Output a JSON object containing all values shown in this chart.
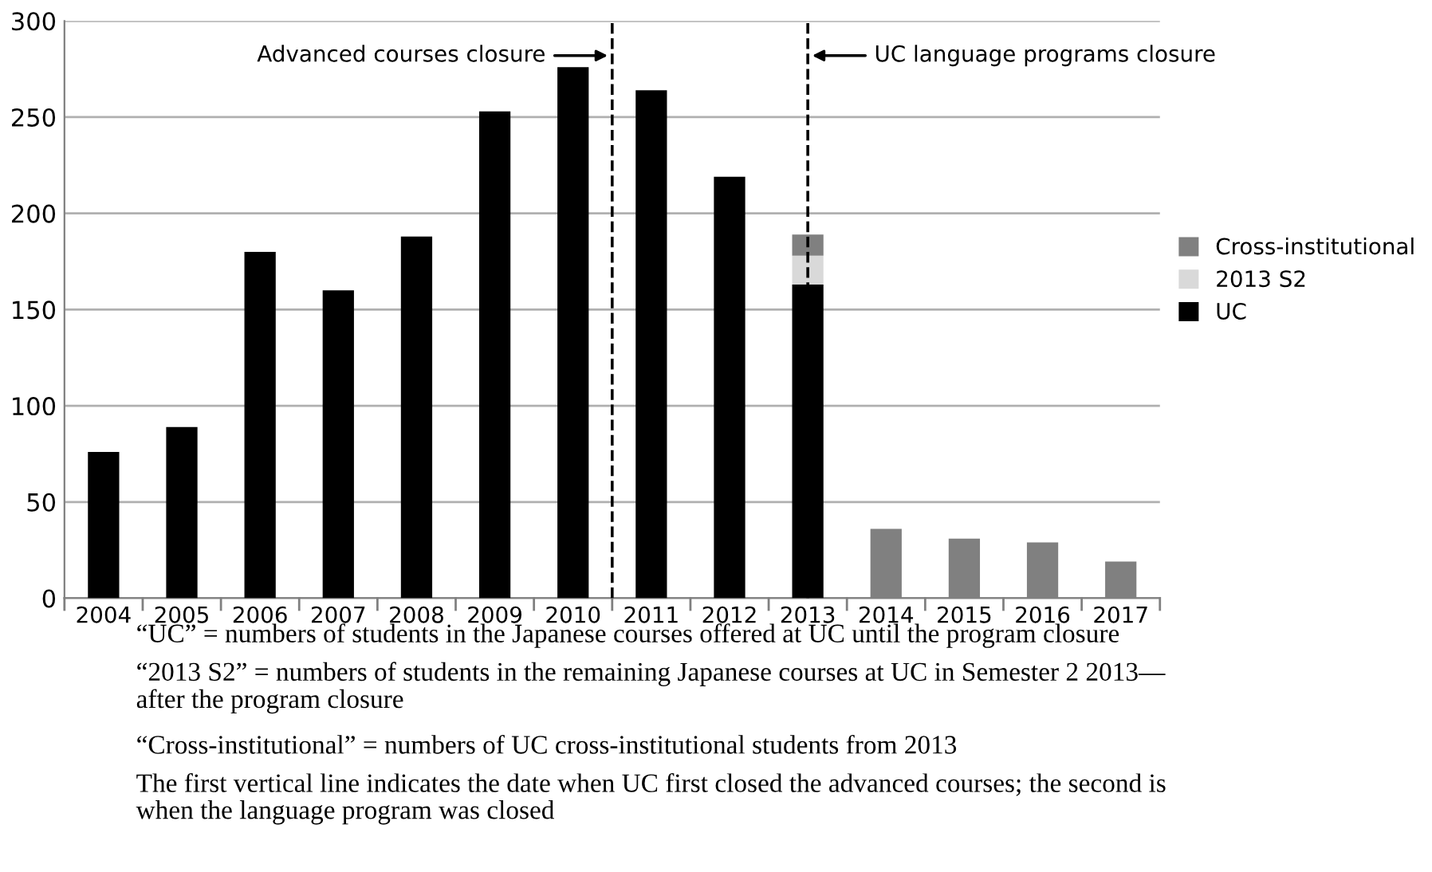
{
  "chart_data": {
    "type": "bar",
    "stacked": true,
    "x": [
      2004,
      2005,
      2006,
      2007,
      2008,
      2009,
      2010,
      2011,
      2012,
      2013,
      2014,
      2015,
      2016,
      2017
    ],
    "xlim": [
      2003.5,
      2017.5
    ],
    "xticks": [
      2004,
      2005,
      2006,
      2007,
      2008,
      2009,
      2010,
      2011,
      2012,
      2013,
      2014,
      2015,
      2016,
      2017
    ],
    "ylim": [
      0,
      300
    ],
    "yticks": [
      0,
      50,
      100,
      150,
      200,
      250,
      300
    ],
    "grid": "y",
    "legend": "right",
    "series": [
      {
        "name": "UC",
        "color": "#000000",
        "values": [
          76,
          89,
          180,
          160,
          188,
          253,
          276,
          264,
          219,
          163,
          null,
          null,
          null,
          null
        ]
      },
      {
        "name": "2013 S2",
        "color": "#d9d9d9",
        "values": [
          null,
          null,
          null,
          null,
          null,
          null,
          null,
          null,
          null,
          15,
          null,
          null,
          null,
          null
        ]
      },
      {
        "name": "Cross-institutional",
        "color": "#808080",
        "values": [
          null,
          null,
          null,
          null,
          null,
          null,
          null,
          null,
          null,
          11,
          36,
          31,
          29,
          19
        ]
      }
    ],
    "ref_lines": [
      {
        "axis": "x",
        "value": 2010.5,
        "label": "Advanced courses closure",
        "color": "#000000",
        "line_style": "dashed"
      },
      {
        "axis": "x",
        "value": 2013,
        "label": "UC language programs closure",
        "color": "#000000",
        "line_style": "dashed"
      }
    ],
    "annotations": [
      "“UC” = numbers of students in the Japanese courses offered at UC until the program closure",
      "“2013 S2” = numbers of students in the remaining Japanese courses at UC in Semester 2 2013—\nafter the program closure",
      "“Cross-institutional” = numbers of UC cross-institutional students from 2013",
      "The first vertical line indicates the date when UC first closed the advanced courses; the second is\nwhen the language program was closed"
    ]
  }
}
